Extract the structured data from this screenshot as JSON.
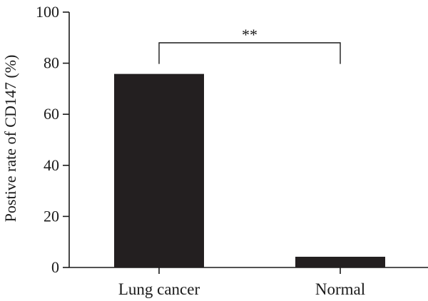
{
  "chart_data": {
    "type": "bar",
    "categories": [
      "Lung cancer",
      "Normal"
    ],
    "values": [
      75.8,
      4.2
    ],
    "title": "",
    "xlabel": "",
    "ylabel": "Postive rate of CD147 (%)",
    "ylim": [
      0,
      100
    ],
    "yticks": [
      0,
      20,
      40,
      60,
      80,
      100
    ],
    "grid": false,
    "bar_color": "#231f20",
    "annotation": {
      "text": "**",
      "between": [
        "Lung cancer",
        "Normal"
      ],
      "y": 80
    }
  }
}
